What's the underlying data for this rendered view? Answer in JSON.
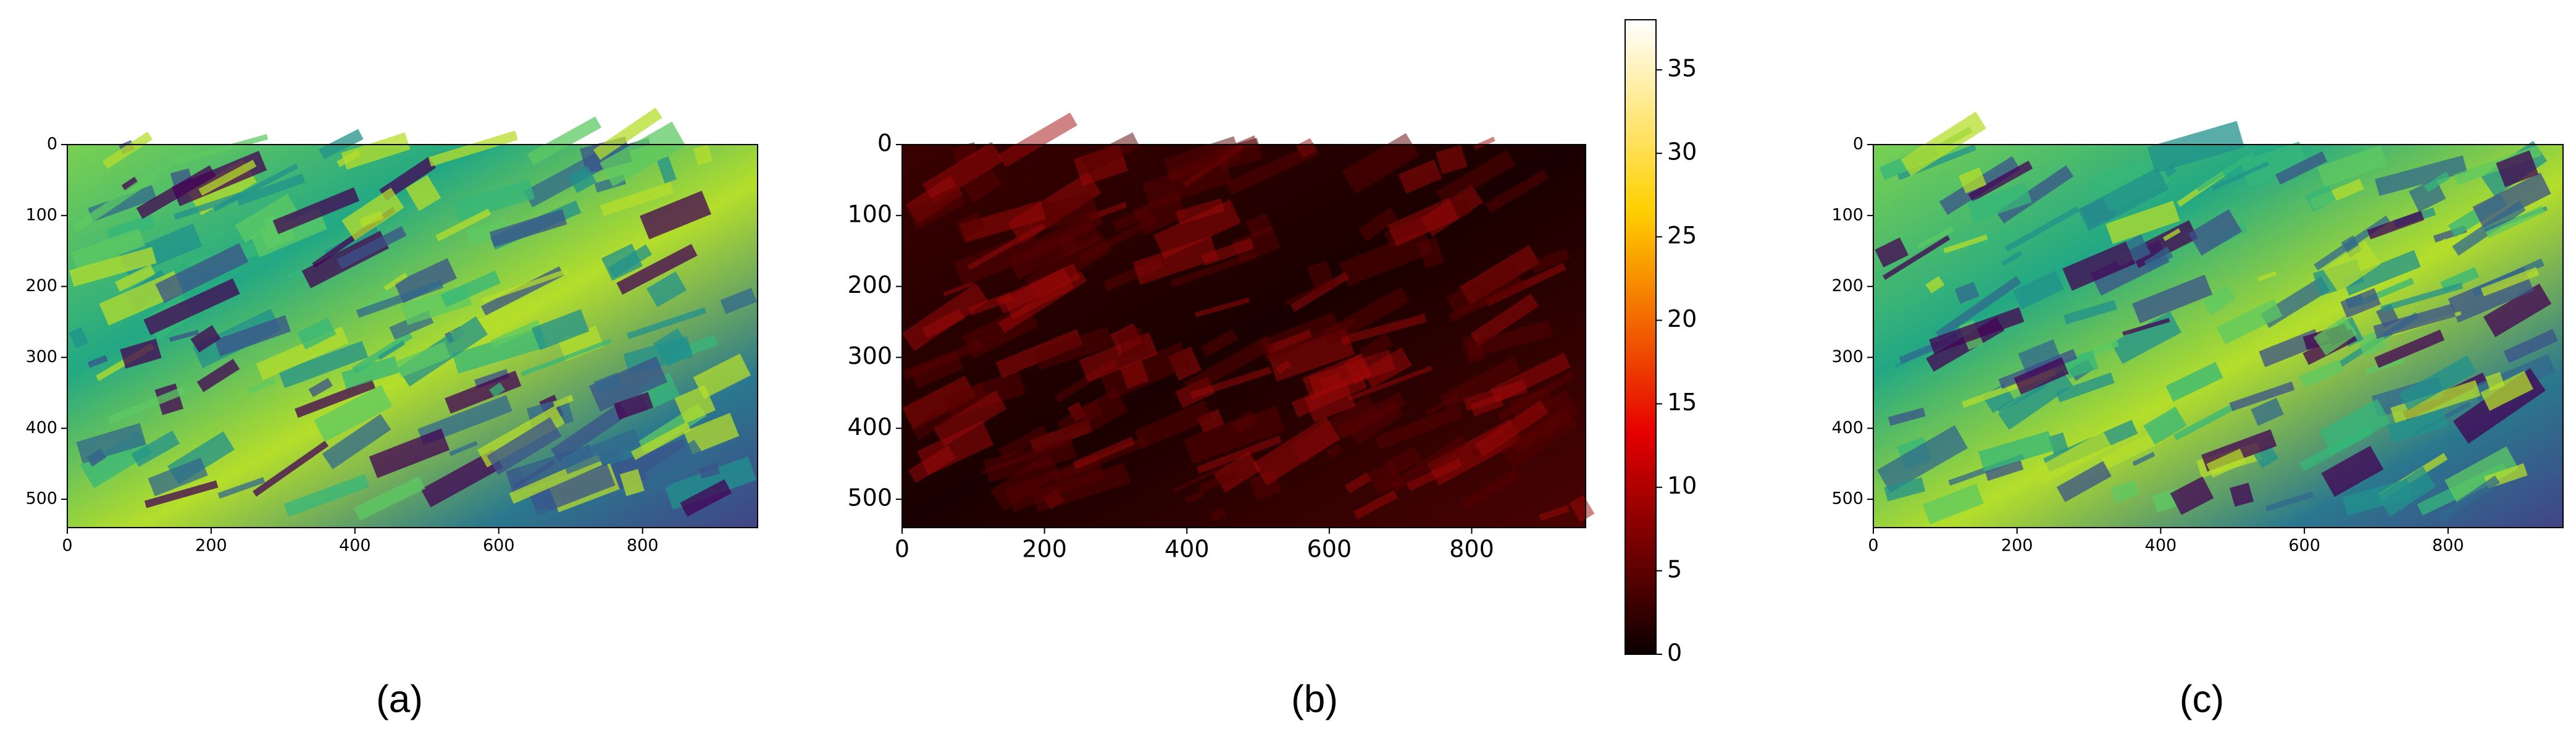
{
  "chart_data": [
    {
      "type": "image",
      "caption": "(a)",
      "xlim": [
        0,
        960
      ],
      "ylim": [
        540,
        0
      ],
      "xticks": [
        0,
        200,
        400,
        600,
        800
      ],
      "yticks": [
        0,
        100,
        200,
        300,
        400,
        500
      ],
      "colormap": "viridis"
    },
    {
      "type": "image",
      "caption": "(b)",
      "xlim": [
        0,
        960
      ],
      "ylim": [
        540,
        0
      ],
      "xticks": [
        0,
        200,
        400,
        600,
        800
      ],
      "yticks": [
        0,
        100,
        200,
        300,
        400,
        500
      ],
      "colormap": "hot",
      "colorbar": {
        "lim": [
          0,
          38
        ],
        "ticks": [
          0,
          5,
          10,
          15,
          20,
          25,
          30,
          35
        ]
      }
    },
    {
      "type": "image",
      "caption": "(c)",
      "xlim": [
        0,
        960
      ],
      "ylim": [
        540,
        0
      ],
      "xticks": [
        0,
        200,
        400,
        600,
        800
      ],
      "yticks": [
        0,
        100,
        200,
        300,
        400,
        500
      ],
      "colormap": "viridis"
    }
  ]
}
